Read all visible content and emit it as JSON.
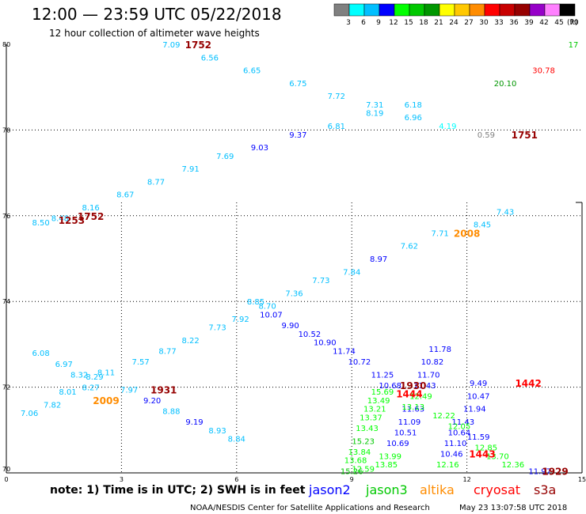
{
  "header": {
    "title": "12:00  —  23:59  UTC  05/22/2018",
    "subtitle": "12 hour collection of altimeter wave heights"
  },
  "colorbar": {
    "colors": [
      "#808080",
      "#00ffff",
      "#00bfff",
      "#0000ff",
      "#00ff00",
      "#00c800",
      "#009600",
      "#ffff00",
      "#ffc800",
      "#ff8c00",
      "#ff0000",
      "#c80000",
      "#960000",
      "#9600c8",
      "#ff80ff",
      "#000000"
    ],
    "labels": [
      "3",
      "6",
      "9",
      "12",
      "15",
      "18",
      "21",
      "24",
      "27",
      "30",
      "33",
      "36",
      "39",
      "42",
      "45",
      "70"
    ],
    "unit": "(ft)"
  },
  "chart_data": {
    "type": "scatter",
    "xlim": [
      0,
      15
    ],
    "ylim": [
      70,
      80
    ],
    "xticks": [
      0,
      3,
      6,
      9,
      12,
      15
    ],
    "yticks": [
      70,
      72,
      74,
      76,
      78,
      80
    ],
    "grid": true,
    "points": [
      {
        "x": 4.3,
        "y": 80.0,
        "v": "7.09",
        "c": "#00bfff"
      },
      {
        "x": 5.3,
        "y": 79.7,
        "v": "6.56",
        "c": "#00bfff"
      },
      {
        "x": 6.4,
        "y": 79.4,
        "v": "6.65",
        "c": "#00bfff"
      },
      {
        "x": 7.6,
        "y": 79.1,
        "v": "6.75",
        "c": "#00bfff"
      },
      {
        "x": 8.6,
        "y": 78.8,
        "v": "7.72",
        "c": "#00bfff"
      },
      {
        "x": 9.6,
        "y": 78.6,
        "v": "7.31",
        "c": "#00bfff"
      },
      {
        "x": 9.6,
        "y": 78.4,
        "v": "8.19",
        "c": "#00bfff"
      },
      {
        "x": 10.6,
        "y": 78.6,
        "v": "6.18",
        "c": "#00bfff"
      },
      {
        "x": 10.6,
        "y": 78.3,
        "v": "6.96",
        "c": "#00bfff"
      },
      {
        "x": 11.5,
        "y": 78.1,
        "v": "4.19",
        "c": "#00ffff"
      },
      {
        "x": 8.6,
        "y": 78.1,
        "v": "6.81",
        "c": "#00bfff"
      },
      {
        "x": 7.6,
        "y": 77.9,
        "v": "9.37",
        "c": "#0000ff"
      },
      {
        "x": 6.6,
        "y": 77.6,
        "v": "9.03",
        "c": "#0000ff"
      },
      {
        "x": 5.7,
        "y": 77.4,
        "v": "7.69",
        "c": "#00bfff"
      },
      {
        "x": 4.8,
        "y": 77.1,
        "v": "7.91",
        "c": "#00bfff"
      },
      {
        "x": 3.9,
        "y": 76.8,
        "v": "8.77",
        "c": "#00bfff"
      },
      {
        "x": 3.1,
        "y": 76.5,
        "v": "8.67",
        "c": "#00bfff"
      },
      {
        "x": 2.2,
        "y": 76.2,
        "v": "8.16",
        "c": "#00bfff"
      },
      {
        "x": 1.4,
        "y": 75.95,
        "v": "8.48",
        "c": "#00bfff"
      },
      {
        "x": 0.9,
        "y": 75.85,
        "v": "8.50",
        "c": "#00bfff"
      },
      {
        "x": 15.0,
        "y": 80.0,
        "v": "17",
        "c": "#00c800"
      },
      {
        "x": 13.0,
        "y": 79.1,
        "v": "20.10",
        "c": "#009600"
      },
      {
        "x": 14.0,
        "y": 79.4,
        "v": "30.78",
        "c": "#ff0000"
      },
      {
        "x": 12.5,
        "y": 77.9,
        "v": "0.59",
        "c": "#808080"
      },
      {
        "x": 13.0,
        "y": 76.1,
        "v": "7.43",
        "c": "#00bfff"
      },
      {
        "x": 12.4,
        "y": 75.8,
        "v": "8.45",
        "c": "#00bfff"
      },
      {
        "x": 11.3,
        "y": 75.6,
        "v": "7.71",
        "c": "#00bfff"
      },
      {
        "x": 10.5,
        "y": 75.3,
        "v": "7.62",
        "c": "#00bfff"
      },
      {
        "x": 9.7,
        "y": 75.0,
        "v": "8.97",
        "c": "#0000ff"
      },
      {
        "x": 9.0,
        "y": 74.7,
        "v": "7.84",
        "c": "#00bfff"
      },
      {
        "x": 8.2,
        "y": 74.5,
        "v": "7.73",
        "c": "#00bfff"
      },
      {
        "x": 7.5,
        "y": 74.2,
        "v": "7.36",
        "c": "#00bfff"
      },
      {
        "x": 6.8,
        "y": 73.9,
        "v": "8.70",
        "c": "#00bfff"
      },
      {
        "x": 6.1,
        "y": 73.6,
        "v": "7.92",
        "c": "#00bfff"
      },
      {
        "x": 5.5,
        "y": 73.4,
        "v": "7.73",
        "c": "#00bfff"
      },
      {
        "x": 4.8,
        "y": 73.1,
        "v": "8.22",
        "c": "#00bfff"
      },
      {
        "x": 4.2,
        "y": 72.85,
        "v": "8.77",
        "c": "#00bfff"
      },
      {
        "x": 3.5,
        "y": 72.6,
        "v": "7.57",
        "c": "#00bfff"
      },
      {
        "x": 2.6,
        "y": 72.35,
        "v": "8.11",
        "c": "#00bfff"
      },
      {
        "x": 2.3,
        "y": 72.25,
        "v": "8.29",
        "c": "#00bfff"
      },
      {
        "x": 2.2,
        "y": 72.0,
        "v": "8.27",
        "c": "#00bfff"
      },
      {
        "x": 1.9,
        "y": 72.3,
        "v": "8.32",
        "c": "#00bfff"
      },
      {
        "x": 1.5,
        "y": 72.55,
        "v": "6.97",
        "c": "#00bfff"
      },
      {
        "x": 0.9,
        "y": 72.8,
        "v": "6.08",
        "c": "#00bfff"
      },
      {
        "x": 1.6,
        "y": 71.9,
        "v": "8.01",
        "c": "#00bfff"
      },
      {
        "x": 1.2,
        "y": 71.6,
        "v": "7.82",
        "c": "#00bfff"
      },
      {
        "x": 0.6,
        "y": 71.4,
        "v": "7.06",
        "c": "#00bfff"
      },
      {
        "x": 3.2,
        "y": 71.95,
        "v": "7.97",
        "c": "#00bfff"
      },
      {
        "x": 3.8,
        "y": 71.7,
        "v": "9.20",
        "c": "#0000ff"
      },
      {
        "x": 4.3,
        "y": 71.45,
        "v": "8.88",
        "c": "#00bfff"
      },
      {
        "x": 4.9,
        "y": 71.2,
        "v": "9.19",
        "c": "#0000ff"
      },
      {
        "x": 5.5,
        "y": 71.0,
        "v": "8.93",
        "c": "#00bfff"
      },
      {
        "x": 6.0,
        "y": 70.8,
        "v": "8.84",
        "c": "#00bfff"
      },
      {
        "x": 6.5,
        "y": 74.0,
        "v": "8.85",
        "c": "#00bfff"
      },
      {
        "x": 6.9,
        "y": 73.7,
        "v": "10.07",
        "c": "#0000ff"
      },
      {
        "x": 7.4,
        "y": 73.45,
        "v": "9.90",
        "c": "#0000ff"
      },
      {
        "x": 7.9,
        "y": 73.25,
        "v": "10.52",
        "c": "#0000ff"
      },
      {
        "x": 8.3,
        "y": 73.05,
        "v": "10.90",
        "c": "#0000ff"
      },
      {
        "x": 8.8,
        "y": 72.85,
        "v": "11.74",
        "c": "#0000ff"
      },
      {
        "x": 9.2,
        "y": 72.6,
        "v": "10.72",
        "c": "#0000ff"
      },
      {
        "x": 9.8,
        "y": 72.3,
        "v": "11.25",
        "c": "#0000ff"
      },
      {
        "x": 10.0,
        "y": 72.05,
        "v": "10.68",
        "c": "#0000ff"
      },
      {
        "x": 12.3,
        "y": 72.1,
        "v": "9.49",
        "c": "#0000ff"
      },
      {
        "x": 12.3,
        "y": 71.8,
        "v": "10.47",
        "c": "#0000ff"
      },
      {
        "x": 12.2,
        "y": 71.5,
        "v": "11.94",
        "c": "#0000ff"
      },
      {
        "x": 11.9,
        "y": 71.2,
        "v": "11.43",
        "c": "#0000ff"
      },
      {
        "x": 11.8,
        "y": 70.95,
        "v": "10.64",
        "c": "#0000ff"
      },
      {
        "x": 11.7,
        "y": 70.7,
        "v": "11.10",
        "c": "#0000ff"
      },
      {
        "x": 11.6,
        "y": 70.45,
        "v": "10.46",
        "c": "#0000ff"
      },
      {
        "x": 11.5,
        "y": 70.2,
        "v": "12.16",
        "c": "#00ff00"
      },
      {
        "x": 11.3,
        "y": 72.9,
        "v": "11.78",
        "c": "#0000ff"
      },
      {
        "x": 11.1,
        "y": 72.6,
        "v": "10.82",
        "c": "#0000ff"
      },
      {
        "x": 11.0,
        "y": 72.3,
        "v": "11.70",
        "c": "#0000ff"
      },
      {
        "x": 10.9,
        "y": 72.05,
        "v": "11.43",
        "c": "#0000ff"
      },
      {
        "x": 10.8,
        "y": 71.8,
        "v": "12.49",
        "c": "#00ff00"
      },
      {
        "x": 10.6,
        "y": 71.5,
        "v": "11.63",
        "c": "#0000ff"
      },
      {
        "x": 10.5,
        "y": 71.2,
        "v": "11.09",
        "c": "#0000ff"
      },
      {
        "x": 10.4,
        "y": 70.95,
        "v": "10.51",
        "c": "#0000ff"
      },
      {
        "x": 10.2,
        "y": 70.7,
        "v": "10.69",
        "c": "#0000ff"
      },
      {
        "x": 10.0,
        "y": 70.4,
        "v": "13.99",
        "c": "#00ff00"
      },
      {
        "x": 9.9,
        "y": 70.2,
        "v": "13.85",
        "c": "#00ff00"
      },
      {
        "x": 9.3,
        "y": 70.1,
        "v": "12.59",
        "c": "#00ff00"
      },
      {
        "x": 9.8,
        "y": 71.9,
        "v": "15.69",
        "c": "#00ff00"
      },
      {
        "x": 9.7,
        "y": 71.7,
        "v": "13.49",
        "c": "#00ff00"
      },
      {
        "x": 9.6,
        "y": 71.5,
        "v": "13.21",
        "c": "#00ff00"
      },
      {
        "x": 9.5,
        "y": 71.3,
        "v": "13.37",
        "c": "#00ff00"
      },
      {
        "x": 9.4,
        "y": 71.05,
        "v": "13.43",
        "c": "#00ff00"
      },
      {
        "x": 9.3,
        "y": 70.75,
        "v": "15.23",
        "c": "#00c800"
      },
      {
        "x": 9.2,
        "y": 70.5,
        "v": "13.84",
        "c": "#00ff00"
      },
      {
        "x": 9.1,
        "y": 70.3,
        "v": "13.68",
        "c": "#00ff00"
      },
      {
        "x": 9.0,
        "y": 70.05,
        "v": "15.26",
        "c": "#00c800"
      },
      {
        "x": 10.6,
        "y": 71.55,
        "v": "13.13",
        "c": "#00ff00"
      },
      {
        "x": 11.4,
        "y": 71.35,
        "v": "12.22",
        "c": "#00ff00"
      },
      {
        "x": 11.8,
        "y": 71.1,
        "v": "12.05",
        "c": "#00ff00"
      },
      {
        "x": 12.3,
        "y": 70.85,
        "v": "11.59",
        "c": "#0000ff"
      },
      {
        "x": 12.5,
        "y": 70.6,
        "v": "12.85",
        "c": "#00ff00"
      },
      {
        "x": 12.8,
        "y": 70.4,
        "v": "13.70",
        "c": "#00ff00"
      },
      {
        "x": 13.2,
        "y": 70.2,
        "v": "12.36",
        "c": "#00ff00"
      },
      {
        "x": 13.9,
        "y": 70.05,
        "v": "11.97",
        "c": "#0000ff"
      }
    ],
    "time_labels": [
      {
        "x": 5.0,
        "y": 80.0,
        "t": "1752",
        "c": "#960000"
      },
      {
        "x": 2.2,
        "y": 76.0,
        "t": "1752",
        "c": "#960000"
      },
      {
        "x": 1.7,
        "y": 75.9,
        "t": "1253",
        "c": "#960000"
      },
      {
        "x": 13.5,
        "y": 77.9,
        "t": "1751",
        "c": "#960000"
      },
      {
        "x": 12.0,
        "y": 75.6,
        "t": "2008",
        "c": "#ff8c00"
      },
      {
        "x": 13.6,
        "y": 72.1,
        "t": "1442",
        "c": "#ff0000"
      },
      {
        "x": 12.4,
        "y": 70.45,
        "t": "1443",
        "c": "#ff0000"
      },
      {
        "x": 2.6,
        "y": 71.7,
        "t": "2009",
        "c": "#ff8c00"
      },
      {
        "x": 4.1,
        "y": 71.95,
        "t": "1931",
        "c": "#960000"
      },
      {
        "x": 10.6,
        "y": 72.05,
        "t": "1930",
        "c": "#960000"
      },
      {
        "x": 10.5,
        "y": 71.85,
        "t": "1444",
        "c": "#ff0000"
      },
      {
        "x": 14.3,
        "y": 70.05,
        "t": "1929",
        "c": "#960000"
      }
    ]
  },
  "ytick_labels": [
    "70",
    "72",
    "74",
    "76",
    "78",
    "80"
  ],
  "xtick_labels": [
    "0",
    "3",
    "6",
    "9",
    "12",
    "15"
  ],
  "note": "note:  1) Time is in UTC; 2) SWH is in feet",
  "legend": [
    {
      "name": "jason2",
      "color": "#0000ff"
    },
    {
      "name": "jason3",
      "color": "#00c800"
    },
    {
      "name": "altika",
      "color": "#ff8c00"
    },
    {
      "name": "cryosat",
      "color": "#ff0000"
    },
    {
      "name": "s3a",
      "color": "#960000"
    }
  ],
  "footer": {
    "credit": "NOAA/NESDIS Center for Satellite Applications and Research",
    "timestamp": "May 23 13:07:58 UTC 2018"
  }
}
